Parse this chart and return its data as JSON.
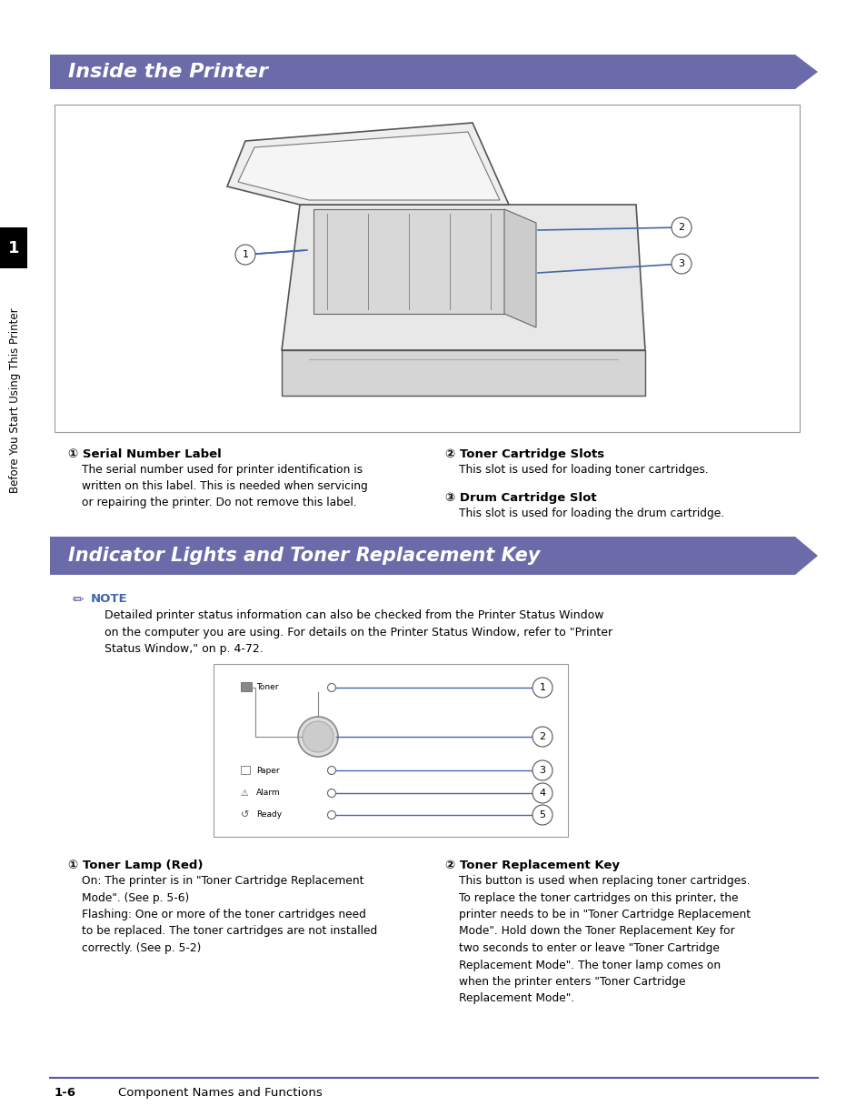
{
  "bg_color": "#ffffff",
  "header1_text": "Inside the Printer",
  "header1_color": "#6b6baa",
  "header2_text": "Indicator Lights and Toner Replacement Key",
  "header2_color": "#6b6baa",
  "sidebar_text": "Before You Start Using This Printer",
  "sidebar_number": "1",
  "footer_text": "1-6",
  "footer_subtext": "Component Names and Functions",
  "footer_line_color": "#5555aa",
  "sec1_left_num": "①",
  "sec1_left_title": "Serial Number Label",
  "sec1_left_body": "The serial number used for printer identification is\nwritten on this label. This is needed when servicing\nor repairing the printer. Do not remove this label.",
  "sec1_right1_num": "②",
  "sec1_right1_title": "Toner Cartridge Slots",
  "sec1_right1_body": "This slot is used for loading toner cartridges.",
  "sec1_right2_num": "③",
  "sec1_right2_title": "Drum Cartridge Slot",
  "sec1_right2_body": "This slot is used for loading the drum cartridge.",
  "note_label": "NOTE",
  "note_text": "Detailed printer status information can also be checked from the Printer Status Window\non the computer you are using. For details on the Printer Status Window, refer to \"Printer\nStatus Window,\" on p. 4-72.",
  "sec2_left_num": "①",
  "sec2_left_title": "Toner Lamp (Red)",
  "sec2_left_body": "On: The printer is in \"Toner Cartridge Replacement\nMode\". (See p. 5-6)\nFlashing: One or more of the toner cartridges need\nto be replaced. The toner cartridges are not installed\ncorrectly. (See p. 5-2)",
  "sec2_right_num": "②",
  "sec2_right_title": "Toner Replacement Key",
  "sec2_right_body": "This button is used when replacing toner cartridges.\nTo replace the toner cartridges on this printer, the\nprinter needs to be in \"Toner Cartridge Replacement\nMode\". Hold down the Toner Replacement Key for\ntwo seconds to enter or leave \"Toner Cartridge\nReplacement Mode\". The toner lamp comes on\nwhen the printer enters \"Toner Cartridge\nReplacement Mode\".",
  "indicator_labels": [
    "Toner",
    "Paper",
    "Alarm",
    "Ready"
  ],
  "line_color": "#4466aa",
  "arrow_color": "#4466aa"
}
